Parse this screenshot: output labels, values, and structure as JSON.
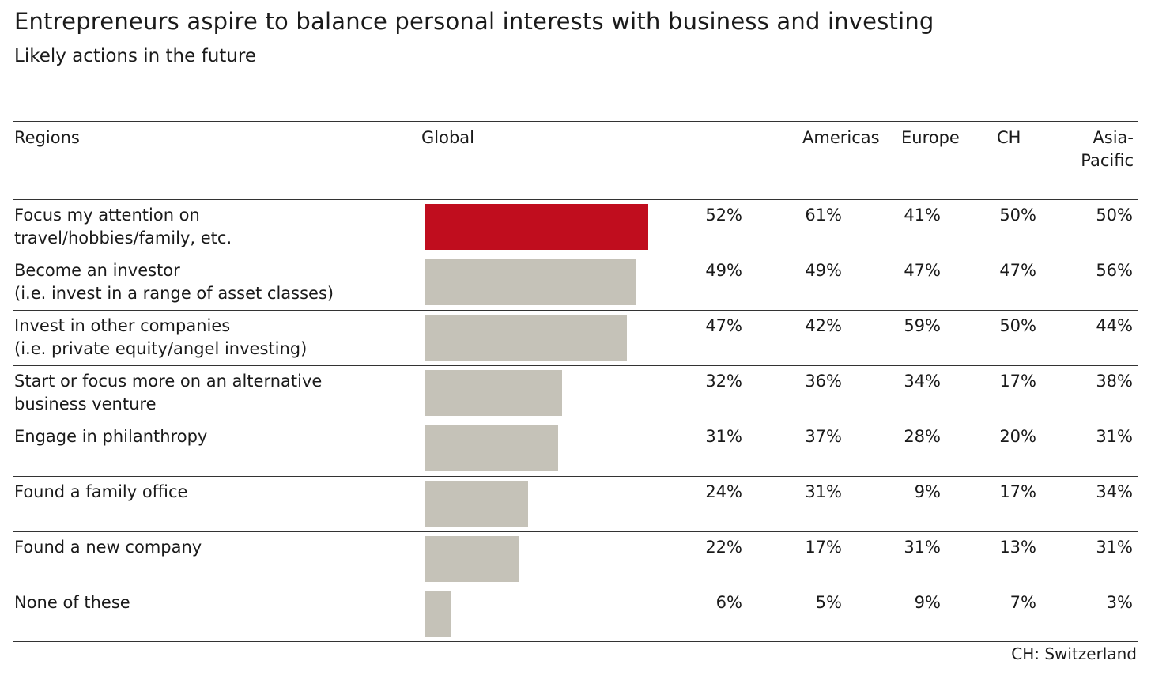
{
  "chart_data": {
    "type": "table",
    "title": "Entrepreneurs aspire to balance personal interests with business and investing",
    "subtitle": "Likely actions in the future",
    "headers": {
      "regions": "Regions",
      "global": "Global",
      "americas": "Americas",
      "europe": "Europe",
      "ch": "CH",
      "asia_line1": "Asia-",
      "asia_line2": "Pacific"
    },
    "bar_max": 100,
    "colors": {
      "highlight": "#c00d1e",
      "default": "#c5c2b8"
    },
    "rows": [
      {
        "label1": "Focus my attention on",
        "label2": "travel/hobbies/family, etc.",
        "global_value": 52,
        "global": "52%",
        "americas": "61%",
        "europe": "41%",
        "ch": "50%",
        "asia_pacific": "50%",
        "highlight": true
      },
      {
        "label1": "Become an investor",
        "label2": "(i.e. invest in a range of asset classes)",
        "global_value": 49,
        "global": "49%",
        "americas": "49%",
        "europe": "47%",
        "ch": "47%",
        "asia_pacific": "56%",
        "highlight": false
      },
      {
        "label1": "Invest in other companies",
        "label2": "(i.e. private equity/angel investing)",
        "global_value": 47,
        "global": "47%",
        "americas": "42%",
        "europe": "59%",
        "ch": "50%",
        "asia_pacific": "44%",
        "highlight": false
      },
      {
        "label1": "Start or focus more on an alternative",
        "label2": "business venture",
        "global_value": 32,
        "global": "32%",
        "americas": "36%",
        "europe": "34%",
        "ch": "17%",
        "asia_pacific": "38%",
        "highlight": false
      },
      {
        "label1": "Engage in philanthropy",
        "label2": "",
        "global_value": 31,
        "global": "31%",
        "americas": "37%",
        "europe": "28%",
        "ch": "20%",
        "asia_pacific": "31%",
        "highlight": false
      },
      {
        "label1": "Found a family office",
        "label2": "",
        "global_value": 24,
        "global": "24%",
        "americas": "31%",
        "europe": "9%",
        "ch": "17%",
        "asia_pacific": "34%",
        "highlight": false
      },
      {
        "label1": "Found a new company",
        "label2": "",
        "global_value": 22,
        "global": "22%",
        "americas": "17%",
        "europe": "31%",
        "ch": "13%",
        "asia_pacific": "31%",
        "highlight": false
      },
      {
        "label1": "None of these",
        "label2": "",
        "global_value": 6,
        "global": "6%",
        "americas": "5%",
        "europe": "9%",
        "ch": "7%",
        "asia_pacific": "3%",
        "highlight": false
      }
    ],
    "footnote": "CH: Switzerland"
  }
}
